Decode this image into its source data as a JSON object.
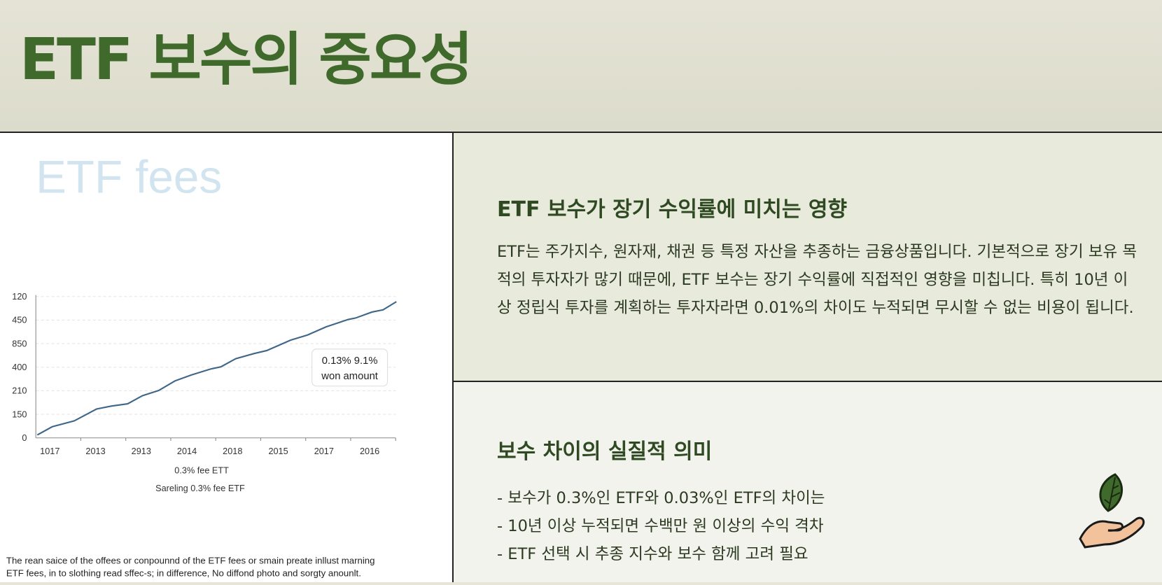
{
  "header": {
    "title": "ETF 보수의 중요성"
  },
  "figure": {
    "watermark": "ETF fees",
    "y_labels": [
      "120",
      "450",
      "850",
      "400",
      "210",
      "150",
      "0"
    ],
    "x_labels": [
      "1017",
      "2013",
      "2913",
      "2014",
      "2018",
      "2015",
      "2017",
      "2016"
    ],
    "legend": [
      "0.3% fee ETT",
      "Sareling 0.3% fee ETF"
    ],
    "annotation": [
      "0.13% 9.1%",
      "won amount"
    ],
    "caption": [
      "The rean saice of the offees or conpounnd of the ETF fees or smain preate inllust marning",
      "ETF fees, in to slothing read sffec-s; in difference, No diffond photo and sorgty anounlt."
    ]
  },
  "section1": {
    "heading": "ETF 보수가 장기 수익률에 미치는 영향",
    "body": "ETF는 주가지수, 원자재, 채권 등 특정 자산을 추종하는 금융상품입니다. 기본적으로 장기 보유 목적의 투자자가 많기 때문에, ETF 보수는 장기 수익률에 직접적인 영향을 미칩니다. 특히 10년 이상 정립식 투자를 계획하는 투자자라면 0.01%의 차이도 누적되면 무시할 수 없는 비용이 됩니다."
  },
  "section2": {
    "heading": "보수 차이의 실질적 의미",
    "items": [
      "- 보수가 0.3%인 ETF와 0.03%인 ETF의 차이는",
      "- 10년 이상 누적되면 수백만 원 이상의 수익 격차",
      "- ETF 선택 시 추종 지수와 보수 함께 고려 필요"
    ]
  }
}
